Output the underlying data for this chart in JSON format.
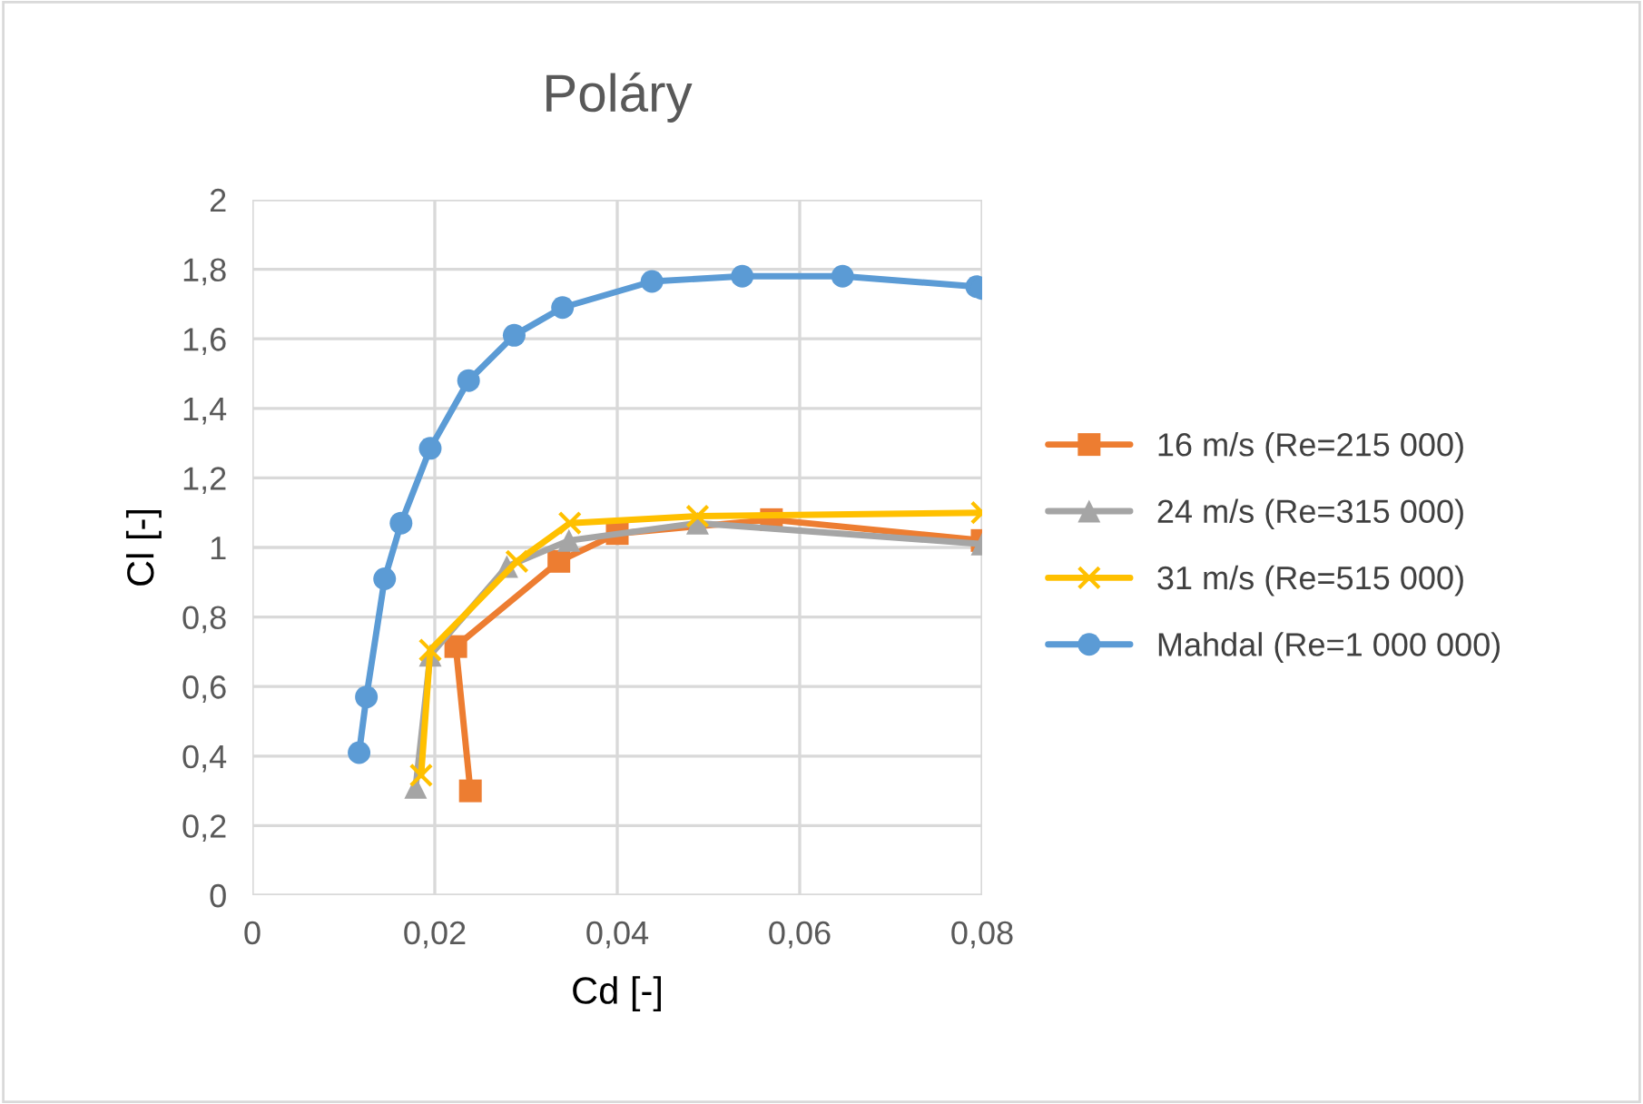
{
  "chart_data": {
    "type": "line",
    "title": "Poláry",
    "xlabel": "Cd [-]",
    "ylabel": "Cl [-]",
    "xlim": [
      0,
      0.08
    ],
    "xticks": [
      {
        "value": 0,
        "label": "0"
      },
      {
        "value": 0.02,
        "label": "0,02"
      },
      {
        "value": 0.04,
        "label": "0,04"
      },
      {
        "value": 0.06,
        "label": "0,06"
      },
      {
        "value": 0.08,
        "label": "0,08"
      }
    ],
    "ylim": [
      0,
      2
    ],
    "yticks": [
      {
        "value": 0,
        "label": "0"
      },
      {
        "value": 0.2,
        "label": "0,2"
      },
      {
        "value": 0.4,
        "label": "0,4"
      },
      {
        "value": 0.6,
        "label": "0,6"
      },
      {
        "value": 0.8,
        "label": "0,8"
      },
      {
        "value": 1,
        "label": "1"
      },
      {
        "value": 1.2,
        "label": "1,2"
      },
      {
        "value": 1.4,
        "label": "1,4"
      },
      {
        "value": 1.6,
        "label": "1,6"
      },
      {
        "value": 1.8,
        "label": "1,8"
      },
      {
        "value": 2,
        "label": "2"
      }
    ],
    "grid": true,
    "legend": "right",
    "line_style": "solid",
    "series": [
      {
        "name": "16 m/s (Re=215 000)",
        "color": "#ed7d31",
        "marker": "square",
        "x": [
          0.0239,
          0.0223,
          0.0336,
          0.04,
          0.0569,
          0.08
        ],
        "values": [
          0.3,
          0.715,
          0.96,
          1.04,
          1.08,
          1.02
        ]
      },
      {
        "name": "24 m/s (Re=315 000)",
        "color": "#a5a5a5",
        "marker": "triangle",
        "x": [
          0.0179,
          0.0195,
          0.0279,
          0.0347,
          0.0488,
          0.08
        ],
        "values": [
          0.31,
          0.69,
          0.945,
          1.02,
          1.07,
          1.01
        ]
      },
      {
        "name": "31 m/s (Re=515 000)",
        "color": "#ffc000",
        "marker": "cross",
        "x": [
          0.0185,
          0.0195,
          0.029,
          0.0348,
          0.0488,
          0.08
        ],
        "values": [
          0.345,
          0.705,
          0.96,
          1.07,
          1.09,
          1.1
        ]
      },
      {
        "name": "Mahdal (Re=1 000 000)",
        "color": "#5b9bd5",
        "marker": "circle",
        "x": [
          0.0117,
          0.0125,
          0.0145,
          0.0163,
          0.0195,
          0.0237,
          0.0287,
          0.034,
          0.0438,
          0.0537,
          0.0647,
          0.0794,
          0.08
        ],
        "values": [
          0.41,
          0.57,
          0.91,
          1.07,
          1.285,
          1.48,
          1.61,
          1.69,
          1.765,
          1.78,
          1.78,
          1.75,
          1.745
        ]
      }
    ]
  }
}
